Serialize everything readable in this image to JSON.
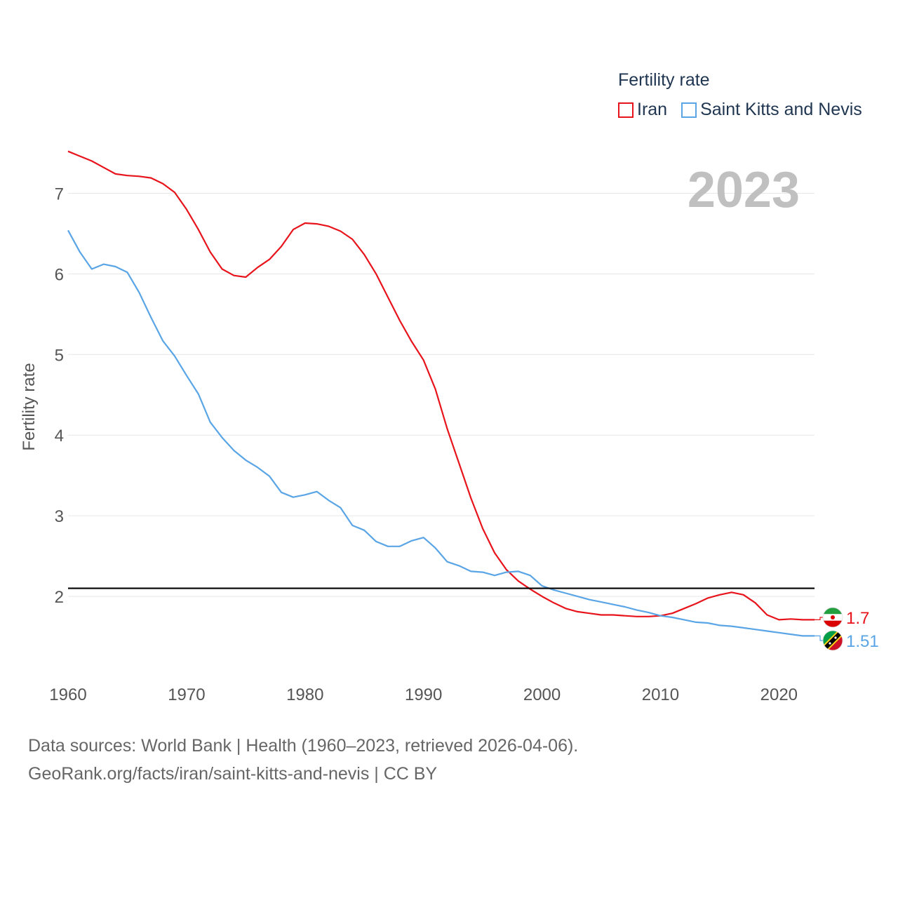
{
  "legend": {
    "title": "Fertility rate",
    "items": [
      {
        "name": "Iran",
        "color": "#e8141c"
      },
      {
        "name": "Saint Kitts and Nevis",
        "color": "#5aa5e6"
      }
    ]
  },
  "year_label": "2023",
  "footer": {
    "line1": "Data sources: World Bank | Health (1960–2023, retrieved 2026-04-06).",
    "line2": "GeoRank.org/facts/iran/saint-kitts-and-nevis | CC BY"
  },
  "chart_data": {
    "type": "line",
    "title": "Fertility rate",
    "xlabel": "",
    "ylabel": "Fertility rate",
    "xlim": [
      1960,
      2023
    ],
    "ylim": [
      1.0,
      7.7
    ],
    "xticks": [
      1960,
      1970,
      1980,
      1990,
      2000,
      2010,
      2020
    ],
    "yticks": [
      2,
      3,
      4,
      5,
      6,
      7
    ],
    "grid": true,
    "reference_line": 2.1,
    "x": [
      1960,
      1961,
      1962,
      1963,
      1964,
      1965,
      1966,
      1967,
      1968,
      1969,
      1970,
      1971,
      1972,
      1973,
      1974,
      1975,
      1976,
      1977,
      1978,
      1979,
      1980,
      1981,
      1982,
      1983,
      1984,
      1985,
      1986,
      1987,
      1988,
      1989,
      1990,
      1991,
      1992,
      1993,
      1994,
      1995,
      1996,
      1997,
      1998,
      1999,
      2000,
      2001,
      2002,
      2003,
      2004,
      2005,
      2006,
      2007,
      2008,
      2009,
      2010,
      2011,
      2012,
      2013,
      2014,
      2015,
      2016,
      2017,
      2018,
      2019,
      2020,
      2021,
      2022,
      2023
    ],
    "series": [
      {
        "name": "Iran",
        "color": "#e8141c",
        "end_label": "1.7",
        "values": [
          7.52,
          7.46,
          7.4,
          7.32,
          7.24,
          7.22,
          7.21,
          7.19,
          7.12,
          7.01,
          6.8,
          6.55,
          6.27,
          6.06,
          5.98,
          5.96,
          6.08,
          6.18,
          6.34,
          6.55,
          6.63,
          6.62,
          6.59,
          6.53,
          6.43,
          6.24,
          6.0,
          5.71,
          5.42,
          5.16,
          4.93,
          4.57,
          4.08,
          3.65,
          3.22,
          2.84,
          2.54,
          2.33,
          2.19,
          2.09,
          2.0,
          1.92,
          1.85,
          1.81,
          1.79,
          1.77,
          1.77,
          1.76,
          1.75,
          1.75,
          1.76,
          1.79,
          1.85,
          1.91,
          1.98,
          2.02,
          2.05,
          2.02,
          1.92,
          1.77,
          1.71,
          1.72,
          1.71,
          1.71
        ]
      },
      {
        "name": "Saint Kitts and Nevis",
        "color": "#5aa5e6",
        "end_label": "1.51",
        "values": [
          6.54,
          6.27,
          6.06,
          6.12,
          6.09,
          6.02,
          5.77,
          5.46,
          5.17,
          4.98,
          4.74,
          4.51,
          4.16,
          3.97,
          3.81,
          3.69,
          3.6,
          3.49,
          3.29,
          3.23,
          3.26,
          3.3,
          3.19,
          3.1,
          2.88,
          2.82,
          2.68,
          2.62,
          2.62,
          2.69,
          2.73,
          2.6,
          2.43,
          2.38,
          2.31,
          2.3,
          2.26,
          2.3,
          2.31,
          2.26,
          2.13,
          2.08,
          2.04,
          2.0,
          1.96,
          1.93,
          1.9,
          1.87,
          1.83,
          1.8,
          1.76,
          1.74,
          1.71,
          1.68,
          1.67,
          1.64,
          1.63,
          1.61,
          1.59,
          1.57,
          1.55,
          1.53,
          1.51,
          1.51
        ]
      }
    ]
  }
}
